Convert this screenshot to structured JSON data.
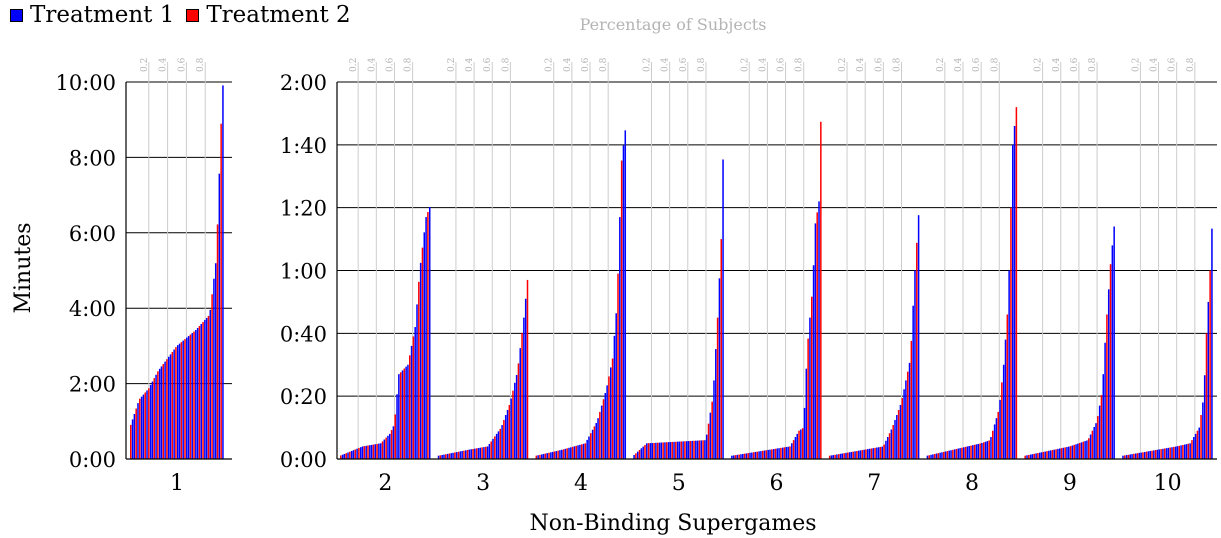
{
  "legend": {
    "t1_label": "Treatment 1",
    "t2_label": "Treatment 2"
  },
  "chart_data": {
    "type": "bar",
    "top_axis_label": "Percentage of Subjects",
    "ylabel": "Minutes",
    "xlabel": "Non-Binding Supergames",
    "pct_ticks": [
      "0.2",
      "0.4",
      "0.6",
      "0.8"
    ],
    "colors": {
      "treatment1": "#0000ff",
      "treatment2": "#ff0000",
      "grid": "#cccccc",
      "pct_text": "#b4b4b4"
    },
    "left_panel": {
      "supergames": [
        "1"
      ],
      "ylim": [
        0,
        600
      ],
      "y_ticks": [
        {
          "value": 0,
          "label": "0:00"
        },
        {
          "value": 120,
          "label": "2:00"
        },
        {
          "value": 240,
          "label": "4:00"
        },
        {
          "value": 360,
          "label": "6:00"
        },
        {
          "value": 480,
          "label": "8:00"
        },
        {
          "value": 600,
          "label": "10:00"
        }
      ]
    },
    "right_panel": {
      "supergames": [
        "2",
        "3",
        "4",
        "5",
        "6",
        "7",
        "8",
        "9",
        "10"
      ],
      "ylim": [
        0,
        120
      ],
      "y_ticks": [
        {
          "value": 0,
          "label": "0:00"
        },
        {
          "value": 20,
          "label": "0:20"
        },
        {
          "value": 40,
          "label": "0:40"
        },
        {
          "value": 60,
          "label": "1:00"
        },
        {
          "value": 80,
          "label": "1:20"
        },
        {
          "value": 100,
          "label": "1:40"
        },
        {
          "value": 120,
          "label": "2:00"
        }
      ]
    },
    "series_names": [
      "Treatment 1",
      "Treatment 2"
    ],
    "distributions": {
      "1": {
        "pct": [
          0,
          0.1,
          0.2,
          0.3,
          0.5,
          0.7,
          0.85,
          0.92,
          0.97,
          1.0
        ],
        "secs": [
          50,
          95,
          112,
          140,
          180,
          205,
          230,
          320,
          530,
          625
        ]
      },
      "2": {
        "pct": [
          0,
          0.25,
          0.45,
          0.55,
          0.6,
          0.65,
          0.75,
          0.83,
          0.88,
          0.95,
          1.0
        ],
        "secs": [
          1,
          4,
          5,
          8,
          11,
          27,
          30,
          42,
          60,
          77,
          81
        ]
      },
      "3": {
        "pct": [
          0,
          0.35,
          0.55,
          0.7,
          0.8,
          0.88,
          0.95,
          1.0
        ],
        "secs": [
          1,
          3,
          4,
          10,
          18,
          28,
          45,
          60
        ]
      },
      "4": {
        "pct": [
          0,
          0.3,
          0.55,
          0.68,
          0.78,
          0.85,
          0.9,
          0.95,
          1.0
        ],
        "secs": [
          1,
          3,
          5,
          12,
          22,
          32,
          50,
          95,
          107
        ]
      },
      "5": {
        "pct": [
          0,
          0.15,
          0.8,
          0.88,
          0.93,
          0.97,
          1.0
        ],
        "secs": [
          1,
          5,
          6,
          20,
          45,
          70,
          108
        ]
      },
      "6": {
        "pct": [
          0,
          0.65,
          0.75,
          0.8,
          0.84,
          0.9,
          0.93,
          0.97,
          1.0
        ],
        "secs": [
          1,
          4,
          9,
          10,
          35,
          55,
          75,
          82,
          120
        ]
      },
      "7": {
        "pct": [
          0,
          0.4,
          0.6,
          0.7,
          0.8,
          0.85,
          0.9,
          0.95,
          1.0
        ],
        "secs": [
          1,
          3,
          4,
          10,
          18,
          25,
          32,
          60,
          82
        ]
      },
      "8": {
        "pct": [
          0,
          0.6,
          0.7,
          0.8,
          0.85,
          0.9,
          0.95,
          1.0
        ],
        "secs": [
          1,
          5,
          6,
          16,
          30,
          50,
          100,
          115
        ]
      },
      "9": {
        "pct": [
          0,
          0.5,
          0.7,
          0.8,
          0.86,
          0.9,
          0.95,
          1.0
        ],
        "secs": [
          1,
          4,
          6,
          12,
          22,
          42,
          62,
          77
        ]
      },
      "10": {
        "pct": [
          0,
          0.6,
          0.75,
          0.85,
          0.9,
          0.93,
          0.97,
          1.0
        ],
        "secs": [
          1,
          4,
          5,
          10,
          20,
          40,
          60,
          80
        ]
      }
    }
  }
}
